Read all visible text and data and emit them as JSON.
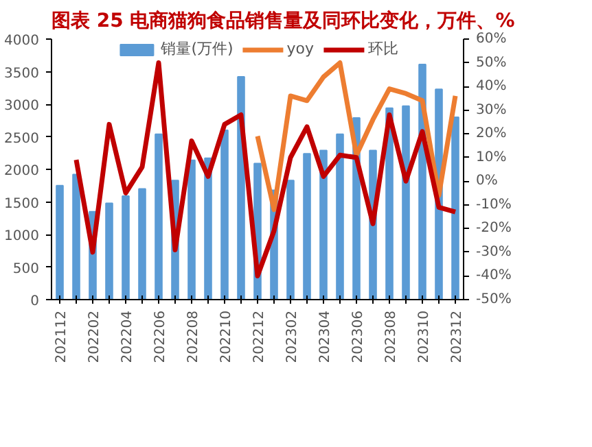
{
  "chart_data": {
    "type": "bar",
    "title": "图表 25 电商猫狗食品销售量及同环比变化，万件、%",
    "categories": [
      "202112",
      null,
      "202202",
      null,
      "202204",
      null,
      "202206",
      null,
      "202208",
      null,
      "202210",
      null,
      "202212",
      null,
      "202302",
      null,
      "202304",
      null,
      "202306",
      null,
      "202308",
      null,
      "202310",
      null,
      "202312"
    ],
    "series": [
      {
        "name": "销量(万件)",
        "color": "#5b9bd5",
        "values": [
          1750,
          1920,
          1350,
          1480,
          1590,
          1700,
          2540,
          1830,
          2140,
          2170,
          2600,
          3420,
          2090,
          1680,
          1830,
          2240,
          2290,
          2540,
          2790,
          2290,
          2940,
          2970,
          3610,
          3230,
          2800
        ]
      },
      {
        "name": "yoy",
        "type": "line",
        "axis": "y2",
        "color": "#ed7d31",
        "values": [
          null,
          null,
          null,
          null,
          null,
          null,
          null,
          null,
          null,
          null,
          null,
          null,
          19,
          -12,
          36,
          34,
          44,
          50,
          11,
          26,
          39,
          37,
          34,
          -6,
          36
        ]
      },
      {
        "name": "环比",
        "type": "line",
        "axis": "y2",
        "color": "#c00000",
        "values": [
          null,
          9,
          -30,
          24,
          -5,
          6,
          50,
          -29,
          17,
          2,
          24,
          28,
          -40,
          -21,
          10,
          23,
          2,
          11,
          10,
          -18,
          28,
          0,
          21,
          -11,
          -13
        ]
      }
    ],
    "ylim": [
      0,
      4000
    ],
    "yticks": [
      0,
      500,
      1000,
      1500,
      2000,
      2500,
      3000,
      3500,
      4000
    ],
    "y2lim": [
      -50,
      60
    ],
    "y2ticks": [
      {
        "value": -50,
        "label": "-50%"
      },
      {
        "value": -40,
        "label": "-40%"
      },
      {
        "value": -30,
        "label": "-30%"
      },
      {
        "value": -20,
        "label": "-20%"
      },
      {
        "value": -10,
        "label": "-10%"
      },
      {
        "value": 0,
        "label": "0%"
      },
      {
        "value": 10,
        "label": "10%"
      },
      {
        "value": 20,
        "label": "20%"
      },
      {
        "value": 30,
        "label": "30%"
      },
      {
        "value": 40,
        "label": "40%"
      },
      {
        "value": 50,
        "label": "50%"
      },
      {
        "value": 60,
        "label": "60%"
      }
    ],
    "legend": "top",
    "grid": false
  }
}
